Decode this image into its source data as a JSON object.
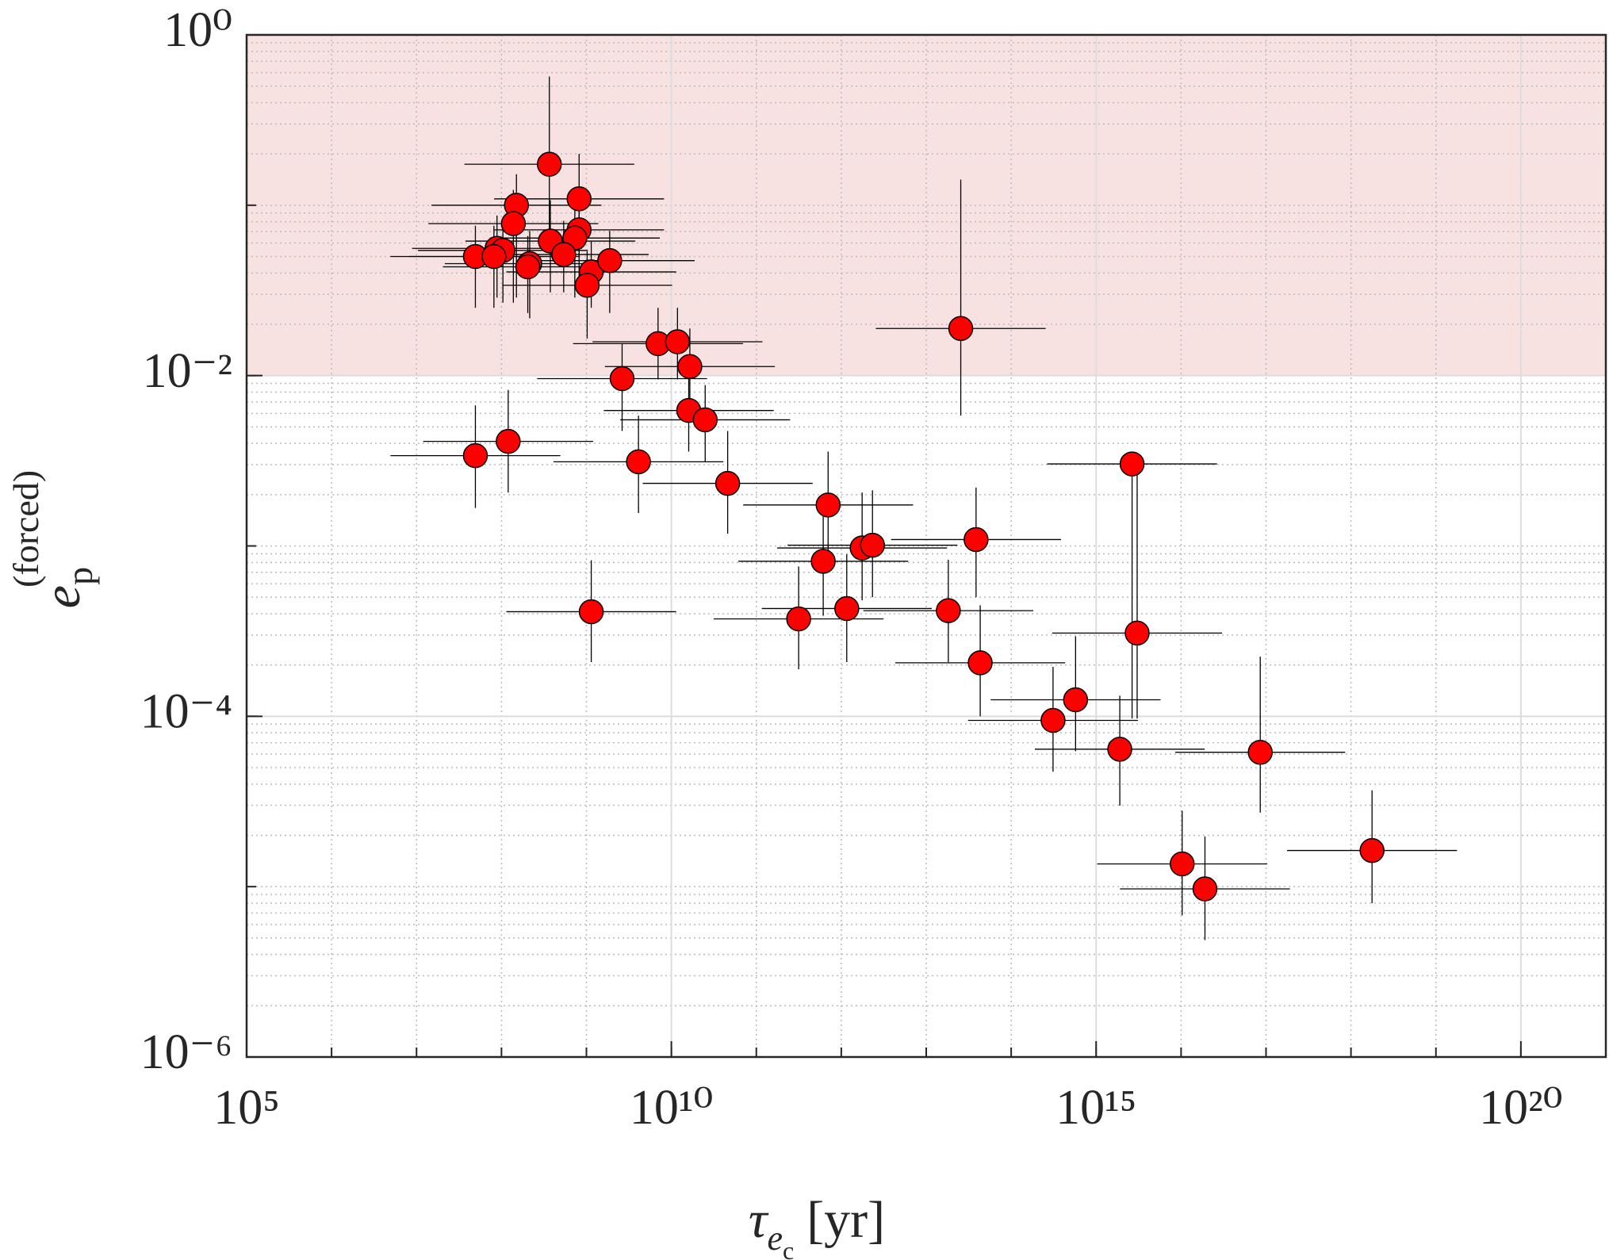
{
  "chart_data": {
    "type": "scatter",
    "x_label": {
      "symbol": "τ",
      "sub": "e",
      "subsub": "c",
      "unit": "[yr]"
    },
    "y_label": {
      "symbol": "e",
      "sub": "p",
      "sup": "(forced)"
    },
    "xscale": "log",
    "yscale": "log",
    "grid": true,
    "xlim": [
      100000.0,
      1e+21
    ],
    "ylim": [
      1e-06,
      1
    ],
    "xticks": [
      {
        "value": 100000.0,
        "label": "10⁵"
      },
      {
        "value": 10000000000.0,
        "label": "10¹⁰"
      },
      {
        "value": 1000000000000000.0,
        "label": "10¹⁵"
      },
      {
        "value": 1e+20,
        "label": "10²⁰"
      }
    ],
    "yticks": [
      {
        "value": 1e-06,
        "label": "10⁻⁶"
      },
      {
        "value": 0.0001,
        "label": "10⁻⁴"
      },
      {
        "value": 0.01,
        "label": "10⁻²"
      },
      {
        "value": 1,
        "label": "10⁰"
      }
    ],
    "shaded_region": {
      "ylim": [
        0.01,
        1
      ],
      "color": "#f8e1e1"
    },
    "color": "#ff0000",
    "x": [
      366000000.0,
      820000000.0,
      150000000.0,
      138000000.0,
      820000000.0,
      376000000.0,
      730000000.0,
      88600000.0,
      104000000.0,
      49300000.0,
      81500000.0,
      540000000.0,
      215000000.0,
      204000000.0,
      1140000000.0,
      1880000000.0,
      1020000000.0,
      6970000000.0,
      11800000000.0,
      16500000000.0,
      2630000000.0,
      16000000000.0,
      25000000000.0,
      25500000000000.0,
      49300000.0,
      120000000.0,
      4100000000.0,
      46000000000.0,
      700000000000.0,
      38600000000000.0,
      1760000000000.0,
      2330000000000.0,
      613000000000.0,
      1140000000.0,
      315000000000.0,
      1160000000000.0,
      18200000000000.0,
      43200000000000.0,
      2650000000000000.0,
      3040000000000000.0,
      311000000000000.0,
      573000000000000.0,
      1900000000000000.0,
      8.55e+16,
      1.03e+16,
      1.91e+16,
      1.77e+18
    ],
    "x_lower": [
      36600000.0,
      82000000.0,
      15000000.0,
      13800000.0,
      82000000.0,
      37600000.0,
      73000000.0,
      8860000.0,
      10400000.0,
      4930000.0,
      8150000.0,
      54000000.0,
      21500000.0,
      20400000.0,
      114000000.0,
      188000000.0,
      102000000.0,
      697000000.0,
      1180000000.0,
      1650000000.0,
      263000000.0,
      1600000000.0,
      2500000000.0,
      2550000000000.0,
      4930000.0,
      12000000.0,
      410000000.0,
      4600000000.0,
      70000000000.0,
      3860000000000.0,
      176000000000.0,
      233000000000.0,
      61300000000.0,
      114000000.0,
      31500000000.0,
      116000000000.0,
      1820000000000.0,
      4320000000000.0,
      265000000000000.0,
      304000000000000.0,
      31100000000000.0,
      57300000000000.0,
      190000000000000.0,
      8550000000000000.0,
      1030000000000000.0,
      1910000000000000.0,
      1.77e+17
    ],
    "x_upper": [
      3660000000.0,
      8200000000.0,
      1500000000.0,
      1380000000.0,
      8200000000.0,
      3760000000.0,
      7300000000.0,
      886000000.0,
      1040000000.0,
      493000000.0,
      815000000.0,
      5400000000.0,
      2150000000.0,
      2040000000.0,
      11400000000.0,
      18800000000.0,
      10200000000.0,
      69700000000.0,
      118000000000.0,
      165000000000.0,
      26300000000.0,
      160000000000.0,
      250000000000.0,
      255000000000000.0,
      493000000.0,
      1200000000.0,
      41000000000.0,
      460000000000.0,
      7000000000000.0,
      386000000000000.0,
      17600000000000.0,
      23300000000000.0,
      6130000000000.0,
      11400000000.0,
      3150000000000.0,
      11600000000000.0,
      182000000000000.0,
      432000000000000.0,
      2.65e+16,
      3.04e+16,
      3110000000000000.0,
      5730000000000000.0,
      1.9e+16,
      8.55e+17,
      1.03e+17,
      1.91e+17,
      1.77e+19
    ],
    "values": [
      0.174,
      0.109,
      0.1,
      0.078,
      0.0717,
      0.0616,
      0.0642,
      0.0558,
      0.0543,
      0.05,
      0.05,
      0.0514,
      0.0454,
      0.0435,
      0.0406,
      0.0473,
      0.0339,
      0.0154,
      0.0158,
      0.0113,
      0.0096,
      0.00624,
      0.0055,
      0.0189,
      0.00339,
      0.00411,
      0.00312,
      0.00233,
      0.00174,
      0.00109,
      0.000973,
      0.00101,
      0.000813,
      0.000411,
      0.000373,
      0.000429,
      0.000417,
      0.000206,
      0.00303,
      0.000308,
      9.46e-05,
      0.000125,
      6.41e-05,
      6.15e-05,
      1.36e-05,
      9.7e-06,
      1.63e-05
    ],
    "y_upper": [
      0.57,
      0.2,
      0.152,
      0.123,
      0.115,
      0.107,
      0.1,
      0.087,
      0.081,
      0.0758,
      0.0758,
      0.081,
      0.0707,
      0.066,
      0.0616,
      0.0707,
      0.0536,
      0.025,
      0.025,
      0.0189,
      0.0154,
      0.0101,
      0.0088,
      0.1415,
      0.00668,
      0.00824,
      0.00582,
      0.00473,
      0.00358,
      0.0022,
      0.00206,
      0.00212,
      0.00156,
      0.000824,
      0.000758,
      0.000895,
      0.00083,
      0.000448,
      0.0035,
      0.003,
      0.000195,
      0.000295,
      0.000132,
      0.000224,
      2.79e-05,
      1.97e-05,
      3.68e-05
    ],
    "y_lower": [
      0.054,
      0.05,
      0.0287,
      0.0268,
      0.033,
      0.0308,
      0.0287,
      0.0287,
      0.0268,
      0.025,
      0.025,
      0.0308,
      0.0217,
      0.0233,
      0.025,
      0.0233,
      0.0165,
      0.0095,
      0.0095,
      0.00624,
      0.00473,
      0.00358,
      0.00312,
      0.00582,
      0.00167,
      0.00206,
      0.00156,
      0.00118,
      0.000835,
      0.0005,
      0.00048,
      0.0005,
      0.000389,
      0.000208,
      0.000189,
      0.000208,
      0.000208,
      0.0001,
      9.7e-05,
      9.7e-05,
      4.73e-05,
      6.24e-05,
      2.99e-05,
      2.72e-05,
      6.78e-06,
      4.86e-06,
      8e-06
    ]
  }
}
